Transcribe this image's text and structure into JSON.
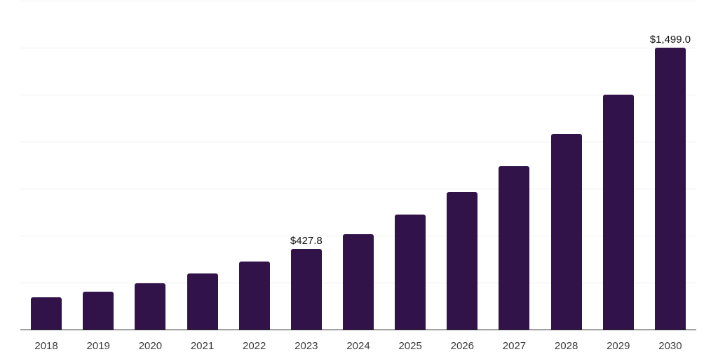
{
  "chart_data": {
    "type": "bar",
    "title": "",
    "xlabel": "",
    "ylabel": "",
    "categories": [
      "2018",
      "2019",
      "2020",
      "2021",
      "2022",
      "2023",
      "2024",
      "2025",
      "2026",
      "2027",
      "2028",
      "2029",
      "2030"
    ],
    "values": [
      172,
      202,
      245,
      299,
      361,
      427.8,
      509,
      611,
      731,
      871,
      1042,
      1251,
      1499.0
    ],
    "data_labels": [
      null,
      null,
      null,
      null,
      null,
      "$427.8",
      null,
      null,
      null,
      null,
      null,
      null,
      "$1,499.0"
    ],
    "ylim": [
      0,
      1750
    ],
    "gridline_values": [
      0,
      250,
      500,
      750,
      1000,
      1250,
      1500,
      1750
    ],
    "grid": "horizontal",
    "legend_position": "none"
  },
  "colors": {
    "bar": "#31134A",
    "gridline": "#f0f0f1",
    "axis": "#262626",
    "year_label": "#3c3c3c",
    "value_label": "#141414",
    "background": "#ffffff"
  }
}
